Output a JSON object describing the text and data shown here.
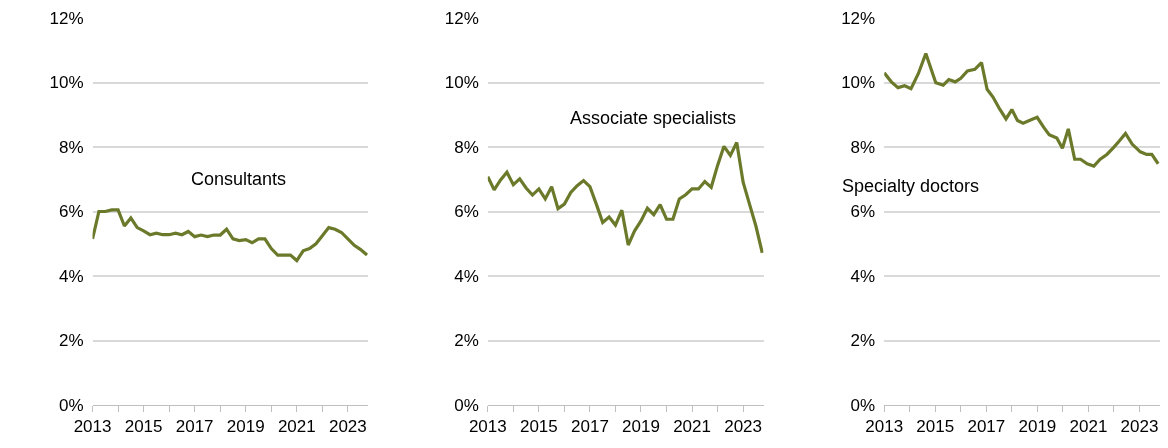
{
  "chart_data": [
    {
      "type": "line",
      "grid": "y",
      "legend": false,
      "marker": "none",
      "line_style": "solid",
      "x": [
        2013,
        2013.25,
        2013.5,
        2013.75,
        2014,
        2014.25,
        2014.5,
        2014.75,
        2015,
        2015.25,
        2015.5,
        2015.75,
        2016,
        2016.25,
        2016.5,
        2016.75,
        2017,
        2017.25,
        2017.5,
        2017.75,
        2018,
        2018.25,
        2018.5,
        2018.75,
        2019,
        2019.25,
        2019.5,
        2019.75,
        2020,
        2020.25,
        2020.5,
        2020.75,
        2021,
        2021.25,
        2021.5,
        2021.75,
        2022,
        2022.25,
        2022.5,
        2022.75,
        2023,
        2023.25,
        2023.5,
        2023.75
      ],
      "series": [
        {
          "name": "Consultants",
          "color": "#6b7a2a",
          "values": [
            5.15,
            6.0,
            6.0,
            6.05,
            6.05,
            5.55,
            5.8,
            5.5,
            5.4,
            5.28,
            5.33,
            5.28,
            5.28,
            5.33,
            5.28,
            5.38,
            5.22,
            5.27,
            5.22,
            5.27,
            5.27,
            5.45,
            5.15,
            5.1,
            5.13,
            5.03,
            5.15,
            5.15,
            4.85,
            4.65,
            4.65,
            4.65,
            4.48,
            4.78,
            4.85,
            5.0,
            5.25,
            5.5,
            5.45,
            5.35,
            5.15,
            4.95,
            4.82,
            4.65
          ]
        }
      ],
      "xlim": [
        2013,
        2023.8
      ],
      "xticks": [
        2013,
        {
          "value": 2014,
          "label": null
        },
        2015,
        {
          "value": 2016,
          "label": null
        },
        2017,
        {
          "value": 2018,
          "label": null
        },
        2019,
        {
          "value": 2020,
          "label": null
        },
        2021,
        {
          "value": 2022,
          "label": null
        },
        2023
      ],
      "ylim": [
        0,
        12
      ],
      "yticks": [
        {
          "value": 0,
          "label": "0%"
        },
        {
          "value": 2,
          "label": "2%"
        },
        {
          "value": 4,
          "label": "4%"
        },
        {
          "value": 6,
          "label": "6%"
        },
        {
          "value": 8,
          "label": "8%"
        },
        {
          "value": 10,
          "label": "10%"
        },
        {
          "value": 12,
          "label": "12%"
        }
      ]
    },
    {
      "type": "line",
      "grid": "y",
      "legend": false,
      "marker": "none",
      "line_style": "solid",
      "x": [
        2013,
        2013.25,
        2013.5,
        2013.75,
        2014,
        2014.25,
        2014.5,
        2014.75,
        2015,
        2015.25,
        2015.5,
        2015.75,
        2016,
        2016.25,
        2016.5,
        2016.75,
        2017,
        2017.25,
        2017.5,
        2017.75,
        2018,
        2018.25,
        2018.5,
        2018.75,
        2019,
        2019.25,
        2019.5,
        2019.75,
        2020,
        2020.25,
        2020.5,
        2020.75,
        2021,
        2021.25,
        2021.5,
        2021.75,
        2022,
        2022.25,
        2022.5,
        2022.75,
        2023,
        2023.25,
        2023.5,
        2023.75
      ],
      "series": [
        {
          "name": "Associate specialists",
          "color": "#6b7a2a",
          "values": [
            7.08,
            6.67,
            6.98,
            7.22,
            6.83,
            7.01,
            6.73,
            6.51,
            6.7,
            6.39,
            6.77,
            6.09,
            6.23,
            6.59,
            6.8,
            6.96,
            6.77,
            6.23,
            5.66,
            5.83,
            5.58,
            6.04,
            4.96,
            5.4,
            5.71,
            6.1,
            5.9,
            6.21,
            5.76,
            5.76,
            6.39,
            6.52,
            6.7,
            6.7,
            6.93,
            6.75,
            7.43,
            8.02,
            7.74,
            8.14,
            6.91,
            6.23,
            5.55,
            4.72
          ]
        }
      ],
      "xlim": [
        2013,
        2023.8
      ],
      "xticks": [
        2013,
        {
          "value": 2014,
          "label": null
        },
        2015,
        {
          "value": 2016,
          "label": null
        },
        2017,
        {
          "value": 2018,
          "label": null
        },
        2019,
        {
          "value": 2020,
          "label": null
        },
        2021,
        {
          "value": 2022,
          "label": null
        },
        2023
      ],
      "ylim": [
        0,
        12
      ],
      "yticks": [
        {
          "value": 0,
          "label": "0%"
        },
        {
          "value": 2,
          "label": "2%"
        },
        {
          "value": 4,
          "label": "4%"
        },
        {
          "value": 6,
          "label": "6%"
        },
        {
          "value": 8,
          "label": "8%"
        },
        {
          "value": 10,
          "label": "10%"
        },
        {
          "value": 12,
          "label": "12%"
        }
      ]
    },
    {
      "type": "line",
      "grid": "y",
      "legend": false,
      "marker": "none",
      "line_style": "solid",
      "x": [
        2013,
        2013.28,
        2013.54,
        2013.8,
        2014.05,
        2014.34,
        2014.63,
        2015.02,
        2015.31,
        2015.53,
        2015.78,
        2016,
        2016.26,
        2016.55,
        2016.81,
        2017.03,
        2017.26,
        2017.52,
        2017.77,
        2018,
        2018.22,
        2018.44,
        2018.73,
        2018.99,
        2019.25,
        2019.46,
        2019.76,
        2019.98,
        2020.21,
        2020.46,
        2020.69,
        2020.95,
        2021.21,
        2021.46,
        2021.72,
        2021.98,
        2022.19,
        2022.45,
        2022.71,
        2023.03,
        2023.28,
        2023.48,
        2023.73
      ],
      "series": [
        {
          "name": "Specialty doctors",
          "color": "#6b7a2a",
          "values": [
            10.3,
            10.02,
            9.84,
            9.9,
            9.81,
            10.28,
            10.9,
            9.99,
            9.92,
            10.09,
            10.02,
            10.13,
            10.36,
            10.41,
            10.62,
            9.79,
            9.55,
            9.18,
            8.87,
            9.16,
            8.82,
            8.74,
            8.84,
            8.92,
            8.61,
            8.38,
            8.28,
            7.96,
            8.56,
            7.62,
            7.62,
            7.48,
            7.41,
            7.62,
            7.77,
            7.98,
            8.17,
            8.42,
            8.09,
            7.85,
            7.77,
            7.77,
            7.48
          ]
        }
      ],
      "xlim": [
        2013,
        2023.8
      ],
      "xticks": [
        2013,
        {
          "value": 2014,
          "label": null
        },
        2015,
        {
          "value": 2016,
          "label": null
        },
        2017,
        {
          "value": 2018,
          "label": null
        },
        2019,
        {
          "value": 2020,
          "label": null
        },
        2021,
        {
          "value": 2022,
          "label": null
        },
        2023
      ],
      "ylim": [
        0,
        12
      ],
      "yticks": [
        {
          "value": 0,
          "label": "0%"
        },
        {
          "value": 2,
          "label": "2%"
        },
        {
          "value": 4,
          "label": "4%"
        },
        {
          "value": 6,
          "label": "6%"
        },
        {
          "value": 8,
          "label": "8%"
        },
        {
          "value": 10,
          "label": "10%"
        },
        {
          "value": 12,
          "label": "12%"
        }
      ]
    }
  ]
}
